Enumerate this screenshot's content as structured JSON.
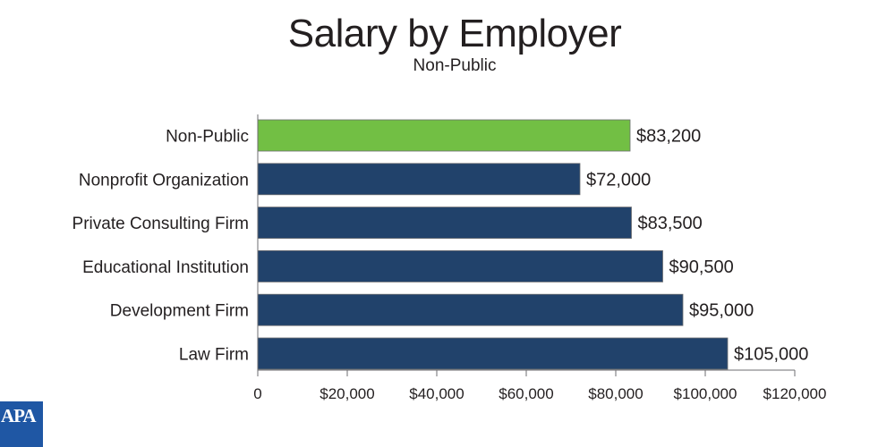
{
  "chart_data": {
    "type": "bar",
    "orientation": "horizontal",
    "title": "Salary by Employer",
    "subtitle": "Non-Public",
    "categories": [
      "Non-Public",
      "Nonprofit Organization",
      "Private Consulting Firm",
      "Educational Institution",
      "Development Firm",
      "Law Firm"
    ],
    "values": [
      83200,
      72000,
      83500,
      90500,
      95000,
      105000
    ],
    "value_labels": [
      "$83,200",
      "$72,000",
      "$83,500",
      "$90,500",
      "$95,000",
      "$105,000"
    ],
    "bar_colors": [
      "#72bf44",
      "#21426b",
      "#21426b",
      "#21426b",
      "#21426b",
      "#21426b"
    ],
    "xlim": [
      0,
      120000
    ],
    "xticks": [
      0,
      20000,
      40000,
      60000,
      80000,
      100000,
      120000
    ],
    "xtick_labels": [
      "0",
      "$20,000",
      "$40,000",
      "$60,000",
      "$80,000",
      "$100,000",
      "$120,000"
    ],
    "grid": false,
    "xlabel": "",
    "ylabel": ""
  },
  "logo": {
    "text": "APA",
    "color": "#1f57a4"
  }
}
